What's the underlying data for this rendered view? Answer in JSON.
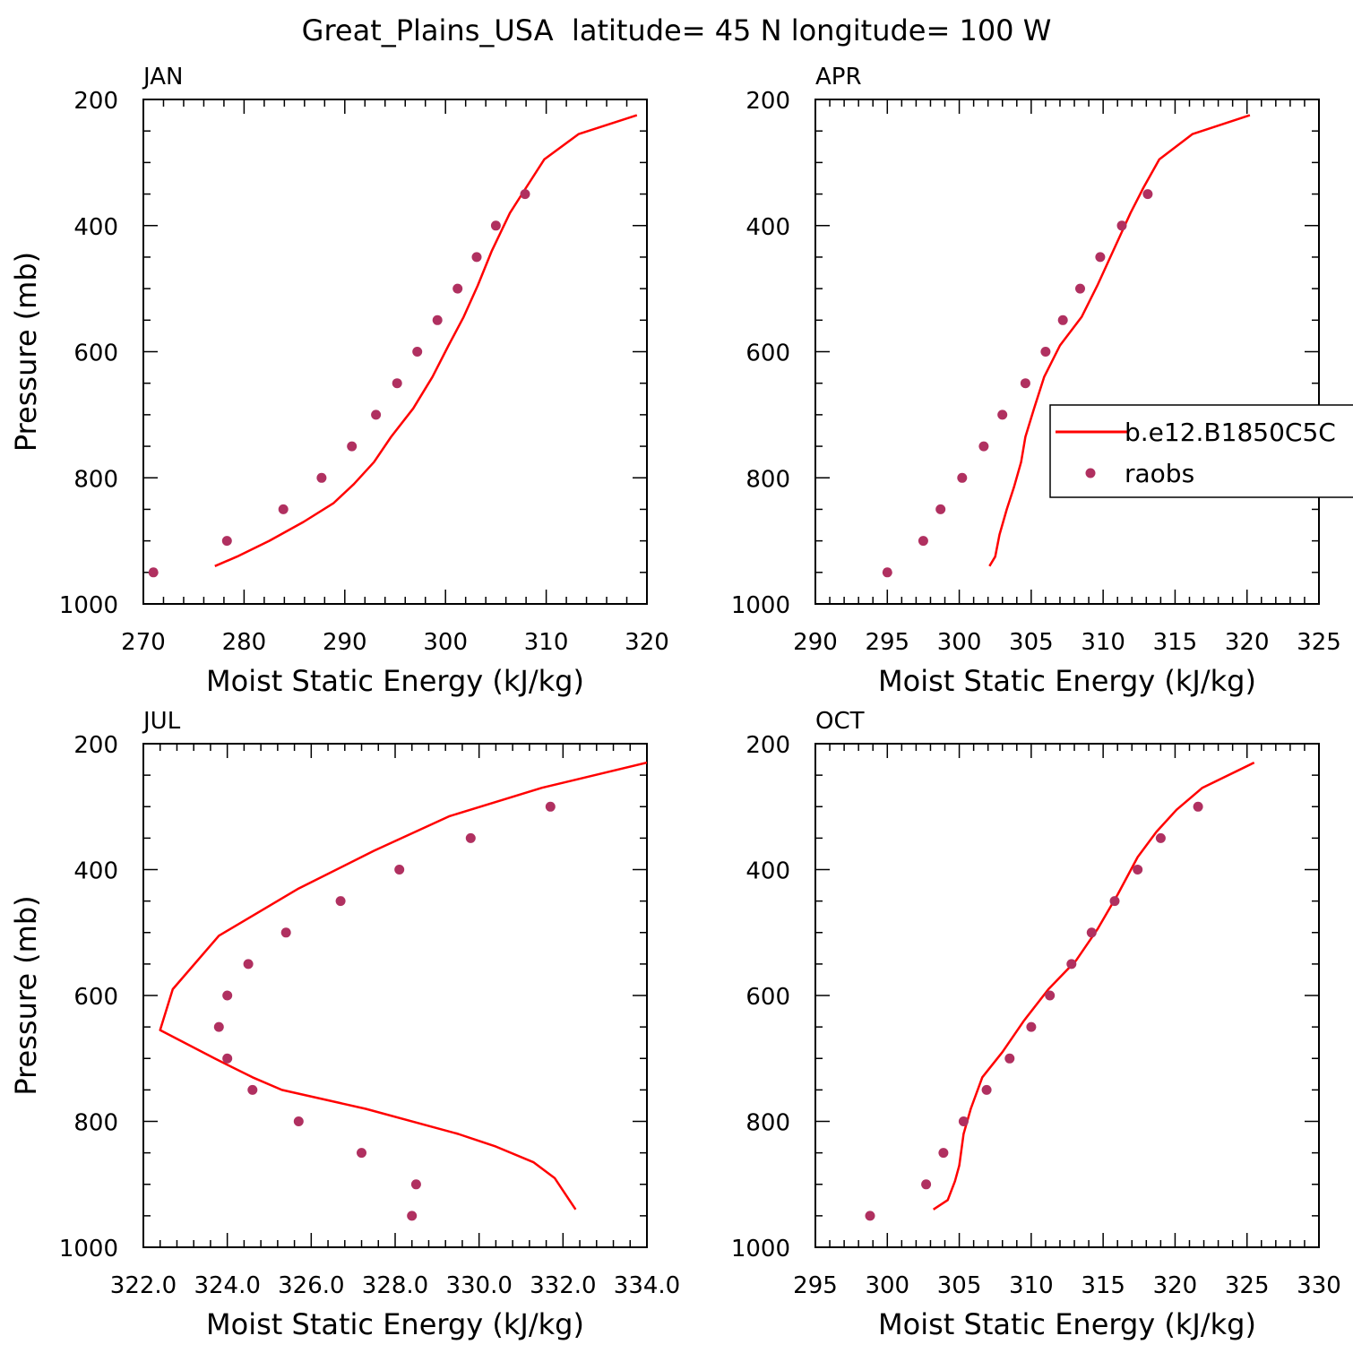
{
  "figure_title": "Great_Plains_USA  latitude= 45 N longitude= 100 W",
  "colors": {
    "model": "#ff0000",
    "obs": "#b03060"
  },
  "legend": {
    "model_label": "b.e12.B1850C5C",
    "obs_label": "raobs",
    "placement": "right, inside APR panel"
  },
  "chart_data": [
    {
      "type": "line",
      "panel_label": "JAN",
      "xlabel": "Moist Static Energy (kJ/kg)",
      "ylabel": "Pressure (mb)",
      "xlim": [
        270,
        320
      ],
      "ylim": [
        1000,
        200
      ],
      "xticks": [
        270,
        280,
        290,
        300,
        310,
        320
      ],
      "xtick_labels": [
        "270",
        "280",
        "290",
        "300",
        "310",
        "320"
      ],
      "yticks": [
        200,
        400,
        600,
        800,
        1000
      ],
      "ytick_labels": [
        "200",
        "400",
        "600",
        "800",
        "1000"
      ],
      "series": [
        {
          "name": "b.e12.B1850C5C",
          "style": "line",
          "points": [
            [
              277.1,
              940
            ],
            [
              279.3,
              925
            ],
            [
              282.5,
              900
            ],
            [
              285.9,
              870
            ],
            [
              288.9,
              840
            ],
            [
              290.9,
              810
            ],
            [
              292.9,
              775
            ],
            [
              294.6,
              735
            ],
            [
              296.8,
              690
            ],
            [
              298.7,
              640
            ],
            [
              300.3,
              590
            ],
            [
              301.8,
              545
            ],
            [
              303.2,
              495
            ],
            [
              304.6,
              440
            ],
            [
              306.4,
              380
            ],
            [
              308.0,
              340
            ],
            [
              309.8,
              295
            ],
            [
              313.2,
              255
            ],
            [
              319.0,
              225
            ]
          ]
        },
        {
          "name": "raobs",
          "style": "points",
          "points": [
            [
              271.0,
              950
            ],
            [
              278.3,
              900
            ],
            [
              283.9,
              850
            ],
            [
              287.7,
              800
            ],
            [
              290.7,
              750
            ],
            [
              293.1,
              700
            ],
            [
              295.2,
              650
            ],
            [
              297.2,
              600
            ],
            [
              299.2,
              550
            ],
            [
              301.2,
              500
            ],
            [
              303.1,
              450
            ],
            [
              305.0,
              400
            ],
            [
              307.9,
              350
            ]
          ]
        }
      ]
    },
    {
      "type": "line",
      "panel_label": "APR",
      "xlabel": "Moist Static Energy (kJ/kg)",
      "ylabel": "",
      "xlim": [
        290,
        325
      ],
      "ylim": [
        1000,
        200
      ],
      "xticks": [
        290,
        295,
        300,
        305,
        310,
        315,
        320,
        325
      ],
      "xtick_labels": [
        "290",
        "295",
        "300",
        "305",
        "310",
        "315",
        "320",
        "325"
      ],
      "yticks": [
        200,
        400,
        600,
        800,
        1000
      ],
      "ytick_labels": [
        "200",
        "400",
        "600",
        "800",
        "1000"
      ],
      "series": [
        {
          "name": "b.e12.B1850C5C",
          "style": "line",
          "points": [
            [
              302.1,
              940
            ],
            [
              302.5,
              925
            ],
            [
              302.8,
              890
            ],
            [
              303.3,
              850
            ],
            [
              303.8,
              815
            ],
            [
              304.3,
              775
            ],
            [
              304.6,
              735
            ],
            [
              305.2,
              690
            ],
            [
              305.9,
              640
            ],
            [
              307.0,
              590
            ],
            [
              308.5,
              545
            ],
            [
              309.6,
              495
            ],
            [
              310.7,
              440
            ],
            [
              311.9,
              380
            ],
            [
              312.8,
              340
            ],
            [
              313.9,
              295
            ],
            [
              316.2,
              255
            ],
            [
              320.2,
              225
            ]
          ]
        },
        {
          "name": "raobs",
          "style": "points",
          "points": [
            [
              295.0,
              950
            ],
            [
              297.5,
              900
            ],
            [
              298.7,
              850
            ],
            [
              300.2,
              800
            ],
            [
              301.7,
              750
            ],
            [
              303.0,
              700
            ],
            [
              304.6,
              650
            ],
            [
              306.0,
              600
            ],
            [
              307.2,
              550
            ],
            [
              308.4,
              500
            ],
            [
              309.8,
              450
            ],
            [
              311.3,
              400
            ],
            [
              313.1,
              350
            ]
          ]
        }
      ]
    },
    {
      "type": "line",
      "panel_label": "JUL",
      "xlabel": "Moist Static Energy (kJ/kg)",
      "ylabel": "Pressure (mb)",
      "xlim": [
        322,
        334
      ],
      "ylim": [
        1000,
        200
      ],
      "xticks": [
        322,
        324,
        326,
        328,
        330,
        332,
        334
      ],
      "xtick_labels": [
        "322.0",
        "324.0",
        "326.0",
        "328.0",
        "330.0",
        "332.0",
        "334.0"
      ],
      "yticks": [
        200,
        400,
        600,
        800,
        1000
      ],
      "ytick_labels": [
        "200",
        "400",
        "600",
        "800",
        "1000"
      ],
      "series": [
        {
          "name": "b.e12.B1850C5C",
          "style": "line",
          "points": [
            [
              332.3,
              940
            ],
            [
              331.8,
              890
            ],
            [
              331.3,
              865
            ],
            [
              330.4,
              840
            ],
            [
              329.5,
              820
            ],
            [
              327.3,
              780
            ],
            [
              325.3,
              750
            ],
            [
              324.6,
              730
            ],
            [
              323.7,
              700
            ],
            [
              322.4,
              655
            ],
            [
              322.7,
              590
            ],
            [
              323.8,
              505
            ],
            [
              325.7,
              430
            ],
            [
              327.5,
              370
            ],
            [
              329.3,
              315
            ],
            [
              331.5,
              270
            ],
            [
              334.0,
              230
            ]
          ]
        },
        {
          "name": "raobs",
          "style": "points",
          "points": [
            [
              328.4,
              950
            ],
            [
              328.5,
              900
            ],
            [
              327.2,
              850
            ],
            [
              325.7,
              800
            ],
            [
              324.6,
              750
            ],
            [
              324.0,
              700
            ],
            [
              323.8,
              650
            ],
            [
              324.0,
              600
            ],
            [
              324.5,
              550
            ],
            [
              325.4,
              500
            ],
            [
              326.7,
              450
            ],
            [
              328.1,
              400
            ],
            [
              329.8,
              350
            ],
            [
              331.7,
              300
            ]
          ]
        }
      ]
    },
    {
      "type": "line",
      "panel_label": "OCT",
      "xlabel": "Moist Static Energy (kJ/kg)",
      "ylabel": "",
      "xlim": [
        295,
        330
      ],
      "ylim": [
        1000,
        200
      ],
      "xticks": [
        295,
        300,
        305,
        310,
        315,
        320,
        325,
        330
      ],
      "xtick_labels": [
        "295",
        "300",
        "305",
        "310",
        "315",
        "320",
        "325",
        "330"
      ],
      "yticks": [
        200,
        400,
        600,
        800,
        1000
      ],
      "ytick_labels": [
        "200",
        "400",
        "600",
        "800",
        "1000"
      ],
      "series": [
        {
          "name": "b.e12.B1850C5C",
          "style": "line",
          "points": [
            [
              303.2,
              940
            ],
            [
              304.2,
              925
            ],
            [
              304.7,
              895
            ],
            [
              305.0,
              870
            ],
            [
              305.3,
              820
            ],
            [
              305.8,
              780
            ],
            [
              306.6,
              730
            ],
            [
              308.0,
              690
            ],
            [
              309.5,
              640
            ],
            [
              311.2,
              590
            ],
            [
              313.1,
              545
            ],
            [
              314.6,
              495
            ],
            [
              316.0,
              440
            ],
            [
              317.4,
              380
            ],
            [
              318.7,
              340
            ],
            [
              320.1,
              305
            ],
            [
              321.9,
              270
            ],
            [
              325.5,
              230
            ]
          ]
        },
        {
          "name": "raobs",
          "style": "points",
          "points": [
            [
              298.8,
              950
            ],
            [
              302.7,
              900
            ],
            [
              303.9,
              850
            ],
            [
              305.3,
              800
            ],
            [
              306.9,
              750
            ],
            [
              308.5,
              700
            ],
            [
              310.0,
              650
            ],
            [
              311.3,
              600
            ],
            [
              312.8,
              550
            ],
            [
              314.2,
              500
            ],
            [
              315.8,
              450
            ],
            [
              317.4,
              400
            ],
            [
              319.0,
              350
            ],
            [
              321.6,
              300
            ]
          ]
        }
      ]
    }
  ]
}
